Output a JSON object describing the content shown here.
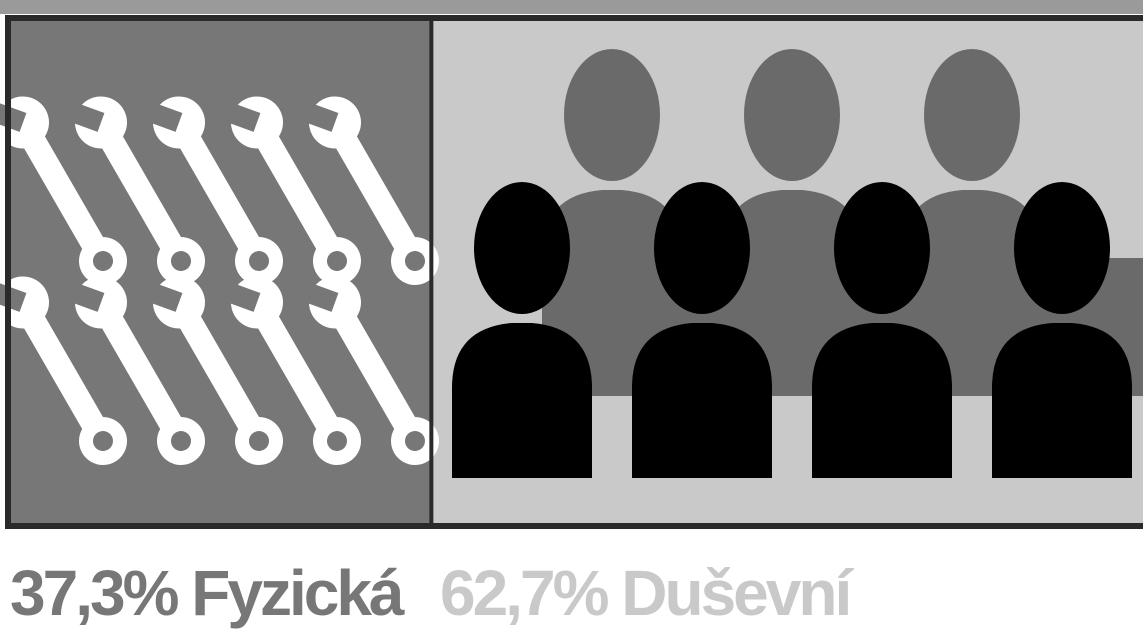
{
  "chart_data": {
    "type": "bar",
    "categories": [
      "Fyzická",
      "Duševní"
    ],
    "values": [
      37.3,
      62.7
    ],
    "value_labels": [
      "37,3%",
      "62,7%"
    ],
    "colors": [
      "#777777",
      "#c9c9c9"
    ],
    "xlim": [
      0,
      100
    ]
  }
}
